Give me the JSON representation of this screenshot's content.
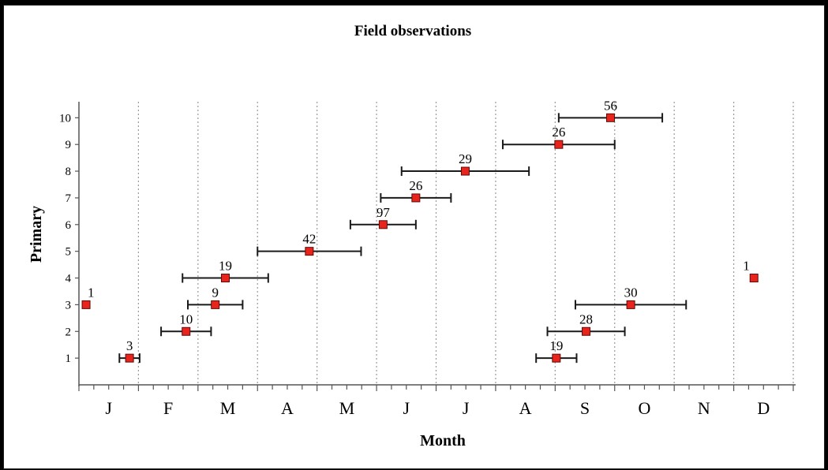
{
  "chart_data": {
    "type": "scatter",
    "title": "Field observations",
    "xlabel": "Month",
    "ylabel": "Primary",
    "x_categories": [
      "J",
      "F",
      "M",
      "A",
      "M",
      "J",
      "J",
      "A",
      "S",
      "O",
      "N",
      "D"
    ],
    "xlim": [
      0,
      12
    ],
    "ylim": [
      0,
      10.6
    ],
    "yticks": [
      "1",
      "2",
      "3",
      "4",
      "5",
      "6",
      "7",
      "8",
      "9",
      "10"
    ],
    "grid": "vertical-dotted",
    "marker_color": "#e8241c",
    "points": [
      {
        "label": "3",
        "y": 1,
        "x": 0.85,
        "err_low": 0.17,
        "err_high": 0.17
      },
      {
        "label": "19",
        "y": 1,
        "x": 8.02,
        "err_low": 0.34,
        "err_high": 0.34
      },
      {
        "label": "10",
        "y": 2,
        "x": 1.8,
        "err_low": 0.42,
        "err_high": 0.42
      },
      {
        "label": "28",
        "y": 2,
        "x": 8.52,
        "err_low": 0.65,
        "err_high": 0.65
      },
      {
        "label": "1",
        "y": 3,
        "x": 0.12
      },
      {
        "label": "9",
        "y": 3,
        "x": 2.29,
        "err_low": 0.46,
        "err_high": 0.46
      },
      {
        "label": "30",
        "y": 3,
        "x": 9.27,
        "err_low": 0.93,
        "err_high": 0.93
      },
      {
        "label": "19",
        "y": 4,
        "x": 2.46,
        "err_low": 0.72,
        "err_high": 0.72
      },
      {
        "label": "1",
        "y": 4,
        "x": 11.34
      },
      {
        "label": "42",
        "y": 5,
        "x": 3.87,
        "err_low": 0.87,
        "err_high": 0.87
      },
      {
        "label": "97",
        "y": 6,
        "x": 5.11,
        "err_low": 0.55,
        "err_high": 0.55
      },
      {
        "label": "26",
        "y": 7,
        "x": 5.66,
        "err_low": 0.59,
        "err_high": 0.59
      },
      {
        "label": "29",
        "y": 8,
        "x": 6.49,
        "err_low": 1.07,
        "err_high": 1.07
      },
      {
        "label": "26",
        "y": 9,
        "x": 8.06,
        "err_low": 0.94,
        "err_high": 0.94
      },
      {
        "label": "56",
        "y": 10,
        "x": 8.93,
        "err_low": 0.87,
        "err_high": 0.87
      }
    ]
  }
}
